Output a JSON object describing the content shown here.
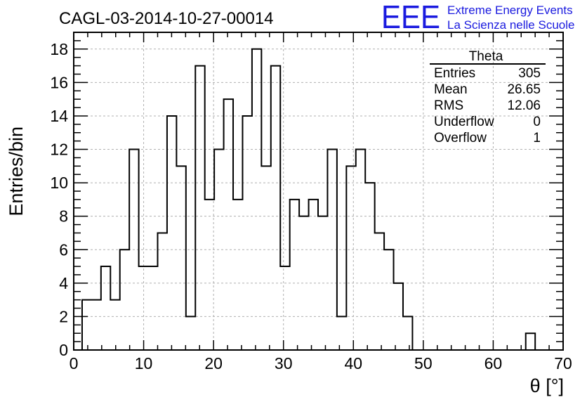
{
  "title": "CAGL-03-2014-10-27-00014",
  "logo": {
    "mark": "EEE",
    "line1": "Extreme Energy Events",
    "line2": "La Scienza nelle Scuole",
    "color": "#1a1adf"
  },
  "stats": {
    "name": "Theta",
    "rows": [
      {
        "label": "Entries",
        "value": "305"
      },
      {
        "label": "Mean",
        "value": "26.65"
      },
      {
        "label": "RMS",
        "value": "12.06"
      },
      {
        "label": "Underflow",
        "value": "0"
      },
      {
        "label": "Overflow",
        "value": "1"
      }
    ]
  },
  "chart_data": {
    "type": "histogram",
    "title": "CAGL-03-2014-10-27-00014",
    "xlabel": "θ [°]",
    "ylabel": "Entries/bin",
    "xlim": [
      0,
      70
    ],
    "ylim": [
      0,
      19
    ],
    "grid": true,
    "x_ticks": [
      0,
      10,
      20,
      30,
      40,
      50,
      60,
      70
    ],
    "y_ticks": [
      0,
      2,
      4,
      6,
      8,
      10,
      12,
      14,
      16,
      18
    ],
    "bin_edges_start": 1.2,
    "bin_width": 1.35,
    "values": [
      3,
      3,
      5,
      3,
      6,
      12,
      5,
      5,
      7,
      14,
      11,
      2,
      17,
      9,
      12,
      15,
      9,
      14,
      18,
      11,
      17,
      5,
      9,
      8,
      9,
      8,
      12,
      2,
      11,
      12,
      10,
      7,
      6,
      4,
      2,
      0,
      0,
      0,
      0,
      0,
      0,
      0,
      0,
      0,
      0,
      0,
      0,
      1,
      0
    ],
    "line_color": "#000000"
  }
}
